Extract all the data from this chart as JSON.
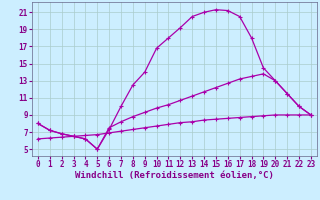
{
  "line1_x": [
    0,
    1,
    2,
    3,
    4,
    5,
    6,
    7,
    8,
    9,
    10,
    11,
    12,
    13,
    14,
    15,
    16,
    17,
    18,
    19,
    20,
    21,
    22,
    23
  ],
  "line1_y": [
    8.0,
    7.2,
    6.8,
    6.5,
    6.2,
    5.0,
    7.3,
    10.0,
    12.5,
    14.0,
    16.8,
    18.0,
    19.2,
    20.5,
    21.0,
    21.3,
    21.2,
    20.5,
    18.0,
    14.5,
    13.0,
    11.5,
    10.0,
    9.0
  ],
  "line2_x": [
    0,
    1,
    2,
    3,
    4,
    5,
    6,
    7,
    8,
    9,
    10,
    11,
    12,
    13,
    14,
    15,
    16,
    17,
    18,
    19,
    20,
    21,
    22,
    23
  ],
  "line2_y": [
    8.0,
    7.2,
    6.8,
    6.5,
    6.2,
    5.0,
    7.5,
    8.2,
    8.8,
    9.3,
    9.8,
    10.2,
    10.7,
    11.2,
    11.7,
    12.2,
    12.7,
    13.2,
    13.5,
    13.8,
    13.0,
    11.5,
    10.0,
    9.0
  ],
  "line3_x": [
    0,
    1,
    2,
    3,
    4,
    5,
    6,
    7,
    8,
    9,
    10,
    11,
    12,
    13,
    14,
    15,
    16,
    17,
    18,
    19,
    20,
    21,
    22,
    23
  ],
  "line3_y": [
    6.2,
    6.3,
    6.4,
    6.5,
    6.6,
    6.7,
    6.9,
    7.1,
    7.3,
    7.5,
    7.7,
    7.9,
    8.1,
    8.2,
    8.4,
    8.5,
    8.6,
    8.7,
    8.8,
    8.9,
    9.0,
    9.0,
    9.0,
    9.0
  ],
  "line_color": "#aa00aa",
  "bg_color": "#cceeff",
  "grid_color": "#aacccc",
  "xlabel": "Windchill (Refroidissement éolien,°C)",
  "xlim": [
    -0.5,
    23.5
  ],
  "ylim": [
    4.2,
    22.2
  ],
  "xticks": [
    0,
    1,
    2,
    3,
    4,
    5,
    6,
    7,
    8,
    9,
    10,
    11,
    12,
    13,
    14,
    15,
    16,
    17,
    18,
    19,
    20,
    21,
    22,
    23
  ],
  "yticks": [
    5,
    7,
    9,
    11,
    13,
    15,
    17,
    19,
    21
  ],
  "marker": "+",
  "markersize": 3.5,
  "linewidth": 0.9,
  "xlabel_fontsize": 6.5,
  "tick_fontsize": 5.5,
  "label_color": "#880088"
}
